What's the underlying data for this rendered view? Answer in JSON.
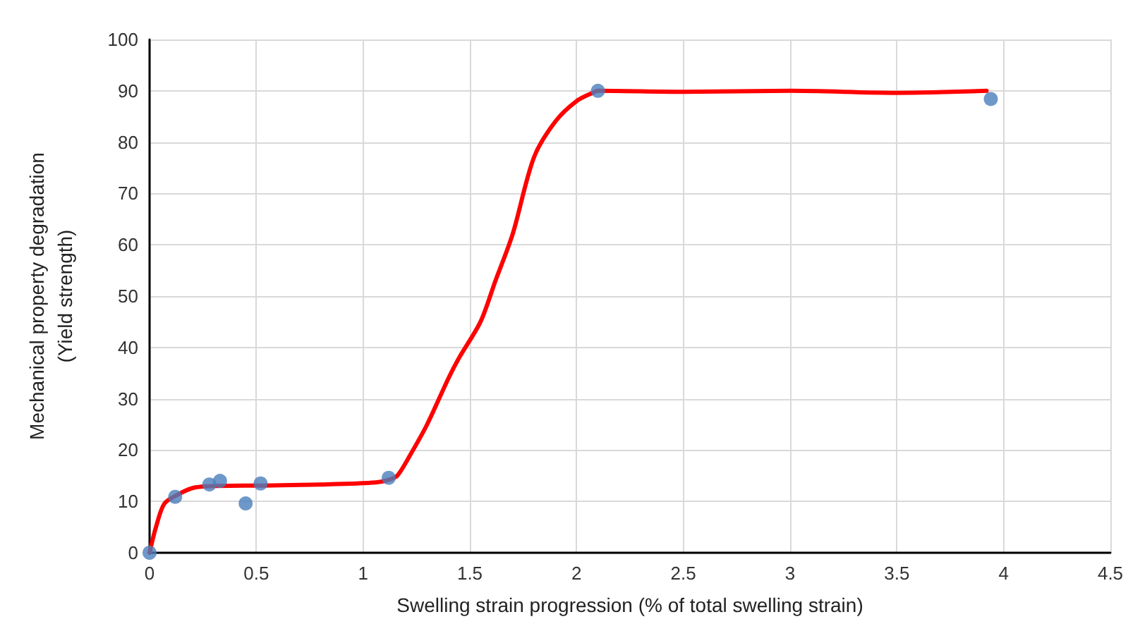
{
  "chart_data": {
    "type": "scatter",
    "xlabel": "Swelling strain progression (% of total swelling strain)",
    "ylabel": "Mechanical property degradation\n(Yield strength)",
    "xlim": [
      0,
      4.5
    ],
    "xticks": [
      0,
      0.5,
      1,
      1.5,
      2,
      2.5,
      3,
      3.5,
      4,
      4.5
    ],
    "ylim": [
      0,
      100
    ],
    "yticks": [
      0,
      10,
      20,
      30,
      40,
      50,
      60,
      70,
      80,
      90,
      100
    ],
    "grid": true,
    "marker": "circle",
    "series": [
      {
        "color": "#4a7ebb",
        "x": [
          0,
          0.12,
          0.28,
          0.33,
          0.45,
          0.52,
          1.12,
          2.1,
          3.94
        ],
        "values": [
          0,
          10.9,
          13.3,
          14,
          9.6,
          13.5,
          14.6,
          90,
          88.4
        ]
      },
      {
        "type": "line",
        "color": "#ff0000",
        "marker": "none",
        "line_style": "solid",
        "x": [
          0,
          0.03,
          0.07,
          0.14,
          0.21,
          0.3,
          0.53,
          0.8,
          1.06,
          1.12,
          1.16,
          1.22,
          1.3,
          1.4,
          1.45,
          1.55,
          1.62,
          1.7,
          1.8,
          1.9,
          2.0,
          2.08,
          2.1,
          2.5,
          3,
          3.5,
          3.92
        ],
        "values": [
          0,
          5,
          9.6,
          11.5,
          12.7,
          13,
          13.1,
          13.3,
          13.7,
          14.2,
          15,
          19,
          25,
          34,
          38,
          45,
          53,
          62,
          77,
          84,
          88,
          89.7,
          90,
          89.8,
          90,
          89.6,
          90
        ]
      }
    ]
  }
}
